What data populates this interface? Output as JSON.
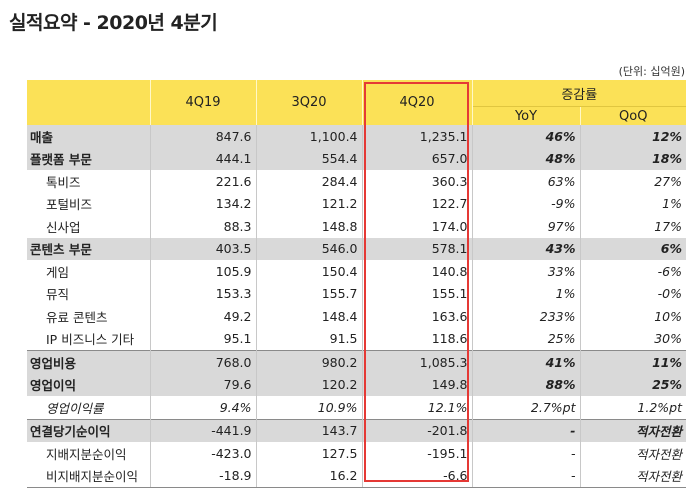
{
  "title": "실적요약 - 2020년 4분기",
  "unit": "(단위: 십억원)",
  "columns": {
    "q1": "4Q19",
    "q2": "3Q20",
    "q3": "4Q20",
    "change": "증감률",
    "yoy": "YoY",
    "qoq": "QoQ"
  },
  "rows": [
    {
      "label": "매출",
      "v1": "847.6",
      "v2": "1,100.4",
      "v3": "1,235.1",
      "yoy": "46%",
      "qoq": "12%"
    },
    {
      "label": "플랫폼 부문",
      "v1": "444.1",
      "v2": "554.4",
      "v3": "657.0",
      "yoy": "48%",
      "qoq": "18%"
    },
    {
      "label": "톡비즈",
      "v1": "221.6",
      "v2": "284.4",
      "v3": "360.3",
      "yoy": "63%",
      "qoq": "27%"
    },
    {
      "label": "포털비즈",
      "v1": "134.2",
      "v2": "121.2",
      "v3": "122.7",
      "yoy": "-9%",
      "qoq": "1%"
    },
    {
      "label": "신사업",
      "v1": "88.3",
      "v2": "148.8",
      "v3": "174.0",
      "yoy": "97%",
      "qoq": "17%"
    },
    {
      "label": "콘텐츠 부문",
      "v1": "403.5",
      "v2": "546.0",
      "v3": "578.1",
      "yoy": "43%",
      "qoq": "6%"
    },
    {
      "label": "게임",
      "v1": "105.9",
      "v2": "150.4",
      "v3": "140.8",
      "yoy": "33%",
      "qoq": "-6%"
    },
    {
      "label": "뮤직",
      "v1": "153.3",
      "v2": "155.7",
      "v3": "155.1",
      "yoy": "1%",
      "qoq": "-0%"
    },
    {
      "label": "유료 콘텐츠",
      "v1": "49.2",
      "v2": "148.4",
      "v3": "163.6",
      "yoy": "233%",
      "qoq": "10%"
    },
    {
      "label": "IP 비즈니스 기타",
      "v1": "95.1",
      "v2": "91.5",
      "v3": "118.6",
      "yoy": "25%",
      "qoq": "30%"
    },
    {
      "label": "영업비용",
      "v1": "768.0",
      "v2": "980.2",
      "v3": "1,085.3",
      "yoy": "41%",
      "qoq": "11%"
    },
    {
      "label": "영업이익",
      "v1": "79.6",
      "v2": "120.2",
      "v3": "149.8",
      "yoy": "88%",
      "qoq": "25%"
    },
    {
      "label": "영업이익률",
      "v1": "9.4%",
      "v2": "10.9%",
      "v3": "12.1%",
      "yoy": "2.7%pt",
      "qoq": "1.2%pt"
    },
    {
      "label": "연결당기순이익",
      "v1": "-441.9",
      "v2": "143.7",
      "v3": "-201.8",
      "yoy": "-",
      "qoq": "적자전환"
    },
    {
      "label": "지배지분순이익",
      "v1": "-423.0",
      "v2": "127.5",
      "v3": "-195.1",
      "yoy": "-",
      "qoq": "적자전환"
    },
    {
      "label": "비지배지분순이익",
      "v1": "-18.9",
      "v2": "16.2",
      "v3": "-6.6",
      "yoy": "-",
      "qoq": "적자전환"
    }
  ],
  "colors": {
    "header": "#fbe157",
    "section": "#d9d9d9",
    "highlight": "#e53935"
  }
}
